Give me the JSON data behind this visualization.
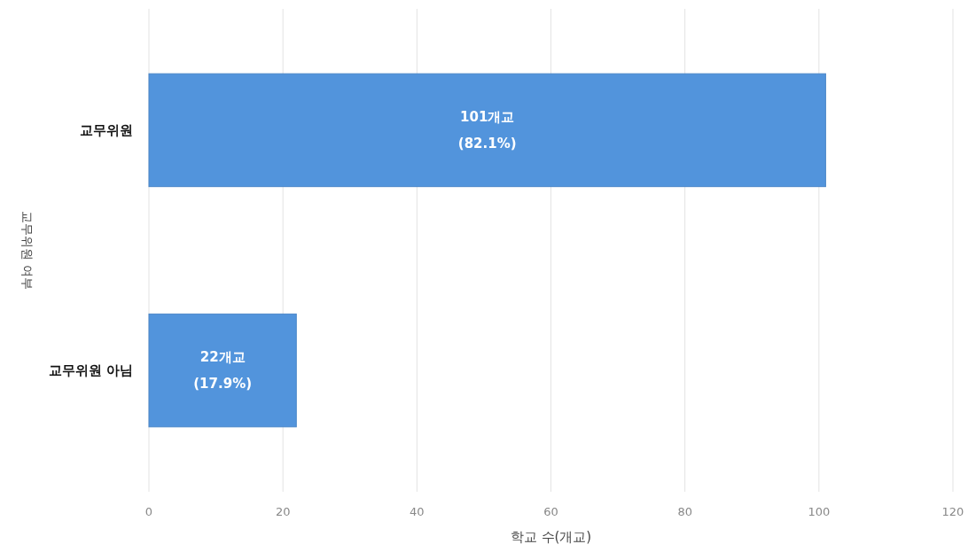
{
  "chart_data": {
    "type": "bar",
    "orientation": "horizontal",
    "categories": [
      "교무위원",
      "교무위원 아님"
    ],
    "values": [
      101,
      22
    ],
    "value_labels": [
      "101개교\n(82.1%)",
      "22개교\n(17.9%)"
    ],
    "color": "#5294dc",
    "xlim": [
      0,
      120
    ],
    "xticks": [
      0,
      20,
      40,
      60,
      80,
      100,
      120
    ],
    "xlabel": "학교 수(개교)",
    "ylabel": "교무위원 여부",
    "grid": "x"
  }
}
